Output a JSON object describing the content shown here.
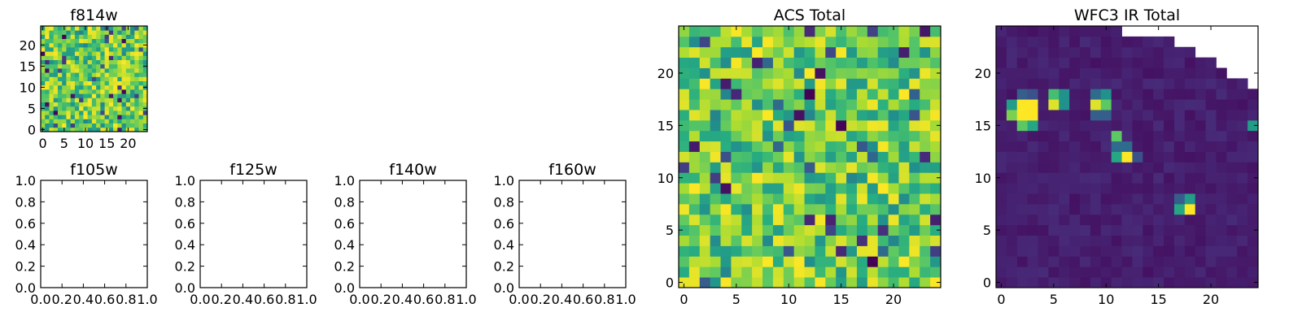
{
  "colors": {
    "low": "#440154",
    "mid": "#21918c",
    "high": "#fde725"
  },
  "chart_data": [
    {
      "type": "heatmap",
      "title": "f814w",
      "grid": false,
      "xlim": [
        -0.5,
        24.5
      ],
      "ylim": [
        -0.5,
        24.5
      ],
      "xticks": [
        0,
        5,
        10,
        15,
        20
      ],
      "yticks": [
        0,
        5,
        10,
        15,
        20
      ],
      "size": [
        25,
        25
      ],
      "pattern": "noise",
      "seed": 11
    },
    {
      "type": "empty",
      "title": "f105w",
      "xlim": [
        0,
        1
      ],
      "ylim": [
        0,
        1
      ],
      "xticks": [
        "0.0",
        "0.2",
        "0.4",
        "0.6",
        "0.8",
        "1.0"
      ],
      "yticks": [
        "0.0",
        "0.2",
        "0.4",
        "0.6",
        "0.8",
        "1.0"
      ]
    },
    {
      "type": "empty",
      "title": "f125w",
      "xlim": [
        0,
        1
      ],
      "ylim": [
        0,
        1
      ],
      "xticks": [
        "0.0",
        "0.2",
        "0.4",
        "0.6",
        "0.8",
        "1.0"
      ],
      "yticks": [
        "0.0",
        "0.2",
        "0.4",
        "0.6",
        "0.8",
        "1.0"
      ]
    },
    {
      "type": "empty",
      "title": "f140w",
      "xlim": [
        0,
        1
      ],
      "ylim": [
        0,
        1
      ],
      "xticks": [
        "0.0",
        "0.2",
        "0.4",
        "0.6",
        "0.8",
        "1.0"
      ],
      "yticks": [
        "0.0",
        "0.2",
        "0.4",
        "0.6",
        "0.8",
        "1.0"
      ]
    },
    {
      "type": "empty",
      "title": "f160w",
      "xlim": [
        0,
        1
      ],
      "ylim": [
        0,
        1
      ],
      "xticks": [
        "0.0",
        "0.2",
        "0.4",
        "0.6",
        "0.8",
        "1.0"
      ],
      "yticks": [
        "0.0",
        "0.2",
        "0.4",
        "0.6",
        "0.8",
        "1.0"
      ]
    },
    {
      "type": "heatmap",
      "title": "ACS Total",
      "grid": false,
      "xlim": [
        -0.5,
        24.5
      ],
      "ylim": [
        -0.5,
        24.5
      ],
      "xticks": [
        0,
        5,
        10,
        15,
        20
      ],
      "yticks": [
        0,
        5,
        10,
        15,
        20
      ],
      "size": [
        25,
        25
      ],
      "pattern": "noise",
      "seed": 7
    },
    {
      "type": "heatmap",
      "title": "WFC3 IR Total",
      "grid": false,
      "xlim": [
        -0.5,
        24.5
      ],
      "ylim": [
        -0.5,
        24.5
      ],
      "xticks": [
        0,
        5,
        10,
        15,
        20
      ],
      "yticks": [
        0,
        5,
        10,
        15,
        20
      ],
      "size": [
        25,
        25
      ],
      "pattern": "sparse",
      "seed": 3,
      "background": 0.05,
      "bright_pixels": [
        {
          "x": 2,
          "y": 17,
          "v": 1.0
        },
        {
          "x": 3,
          "y": 17,
          "v": 1.0
        },
        {
          "x": 2,
          "y": 16,
          "v": 1.0
        },
        {
          "x": 3,
          "y": 16,
          "v": 1.0
        },
        {
          "x": 1,
          "y": 17,
          "v": 0.55
        },
        {
          "x": 1,
          "y": 16,
          "v": 0.8
        },
        {
          "x": 2,
          "y": 15,
          "v": 0.75
        },
        {
          "x": 3,
          "y": 15,
          "v": 0.6
        },
        {
          "x": 2,
          "y": 18,
          "v": 0.3
        },
        {
          "x": 3,
          "y": 18,
          "v": 0.25
        },
        {
          "x": 5,
          "y": 17,
          "v": 0.95
        },
        {
          "x": 5,
          "y": 18,
          "v": 0.7
        },
        {
          "x": 6,
          "y": 18,
          "v": 0.5
        },
        {
          "x": 6,
          "y": 17,
          "v": 0.5
        },
        {
          "x": 10,
          "y": 17,
          "v": 0.75
        },
        {
          "x": 9,
          "y": 17,
          "v": 0.95
        },
        {
          "x": 10,
          "y": 18,
          "v": 0.5
        },
        {
          "x": 9,
          "y": 18,
          "v": 0.35
        },
        {
          "x": 9,
          "y": 16,
          "v": 0.3
        },
        {
          "x": 10,
          "y": 16,
          "v": 0.3
        },
        {
          "x": 11,
          "y": 14,
          "v": 0.75
        },
        {
          "x": 11,
          "y": 13,
          "v": 0.35
        },
        {
          "x": 11,
          "y": 12,
          "v": 0.6
        },
        {
          "x": 12,
          "y": 12,
          "v": 1.0
        },
        {
          "x": 12,
          "y": 13,
          "v": 0.35
        },
        {
          "x": 13,
          "y": 12,
          "v": 0.25
        },
        {
          "x": 18,
          "y": 7,
          "v": 1.0
        },
        {
          "x": 18,
          "y": 8,
          "v": 0.55
        },
        {
          "x": 17,
          "y": 8,
          "v": 0.3
        },
        {
          "x": 17,
          "y": 7,
          "v": 0.6
        },
        {
          "x": 24,
          "y": 15,
          "v": 0.55
        }
      ],
      "masked_rows": [
        {
          "y": 24,
          "from_x": 12
        },
        {
          "y": 23,
          "from_x": 17
        },
        {
          "y": 22,
          "from_x": 19
        },
        {
          "y": 21,
          "from_x": 21
        },
        {
          "y": 20,
          "from_x": 22
        },
        {
          "y": 19,
          "from_x": 24
        }
      ]
    }
  ]
}
